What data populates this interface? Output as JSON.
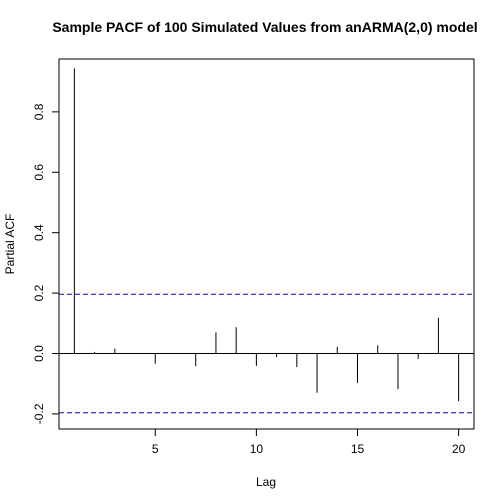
{
  "chart_data": {
    "type": "bar",
    "title": "Sample PACF of 100 Simulated Values from anARMA(2,0) model",
    "xlabel": "Lag",
    "ylabel": "Partial ACF",
    "x": [
      1,
      2,
      3,
      4,
      5,
      6,
      7,
      8,
      9,
      10,
      11,
      12,
      13,
      14,
      15,
      16,
      17,
      18,
      19,
      20
    ],
    "values": [
      0.944,
      0.005,
      0.016,
      0.001,
      -0.034,
      0.001,
      -0.042,
      0.07,
      0.087,
      -0.041,
      -0.012,
      -0.045,
      -0.13,
      0.022,
      -0.098,
      0.027,
      -0.118,
      -0.018,
      0.118,
      -0.158
    ],
    "ci": 0.196,
    "xlim": [
      0.24,
      20.76
    ],
    "ylim": [
      -0.25,
      0.975
    ],
    "xticks": [
      5,
      10,
      15,
      20
    ],
    "yticks": [
      -0.2,
      0.0,
      0.2,
      0.4,
      0.6,
      0.8
    ],
    "xtick_labels": [
      "5",
      "10",
      "15",
      "20"
    ],
    "ytick_labels": [
      "-0.2",
      "0.0",
      "0.2",
      "0.4",
      "0.6",
      "0.8"
    ],
    "grid": false,
    "colors": {
      "spike": "#000000",
      "ci_line": "#0000cc",
      "zero_line": "#000000"
    }
  }
}
